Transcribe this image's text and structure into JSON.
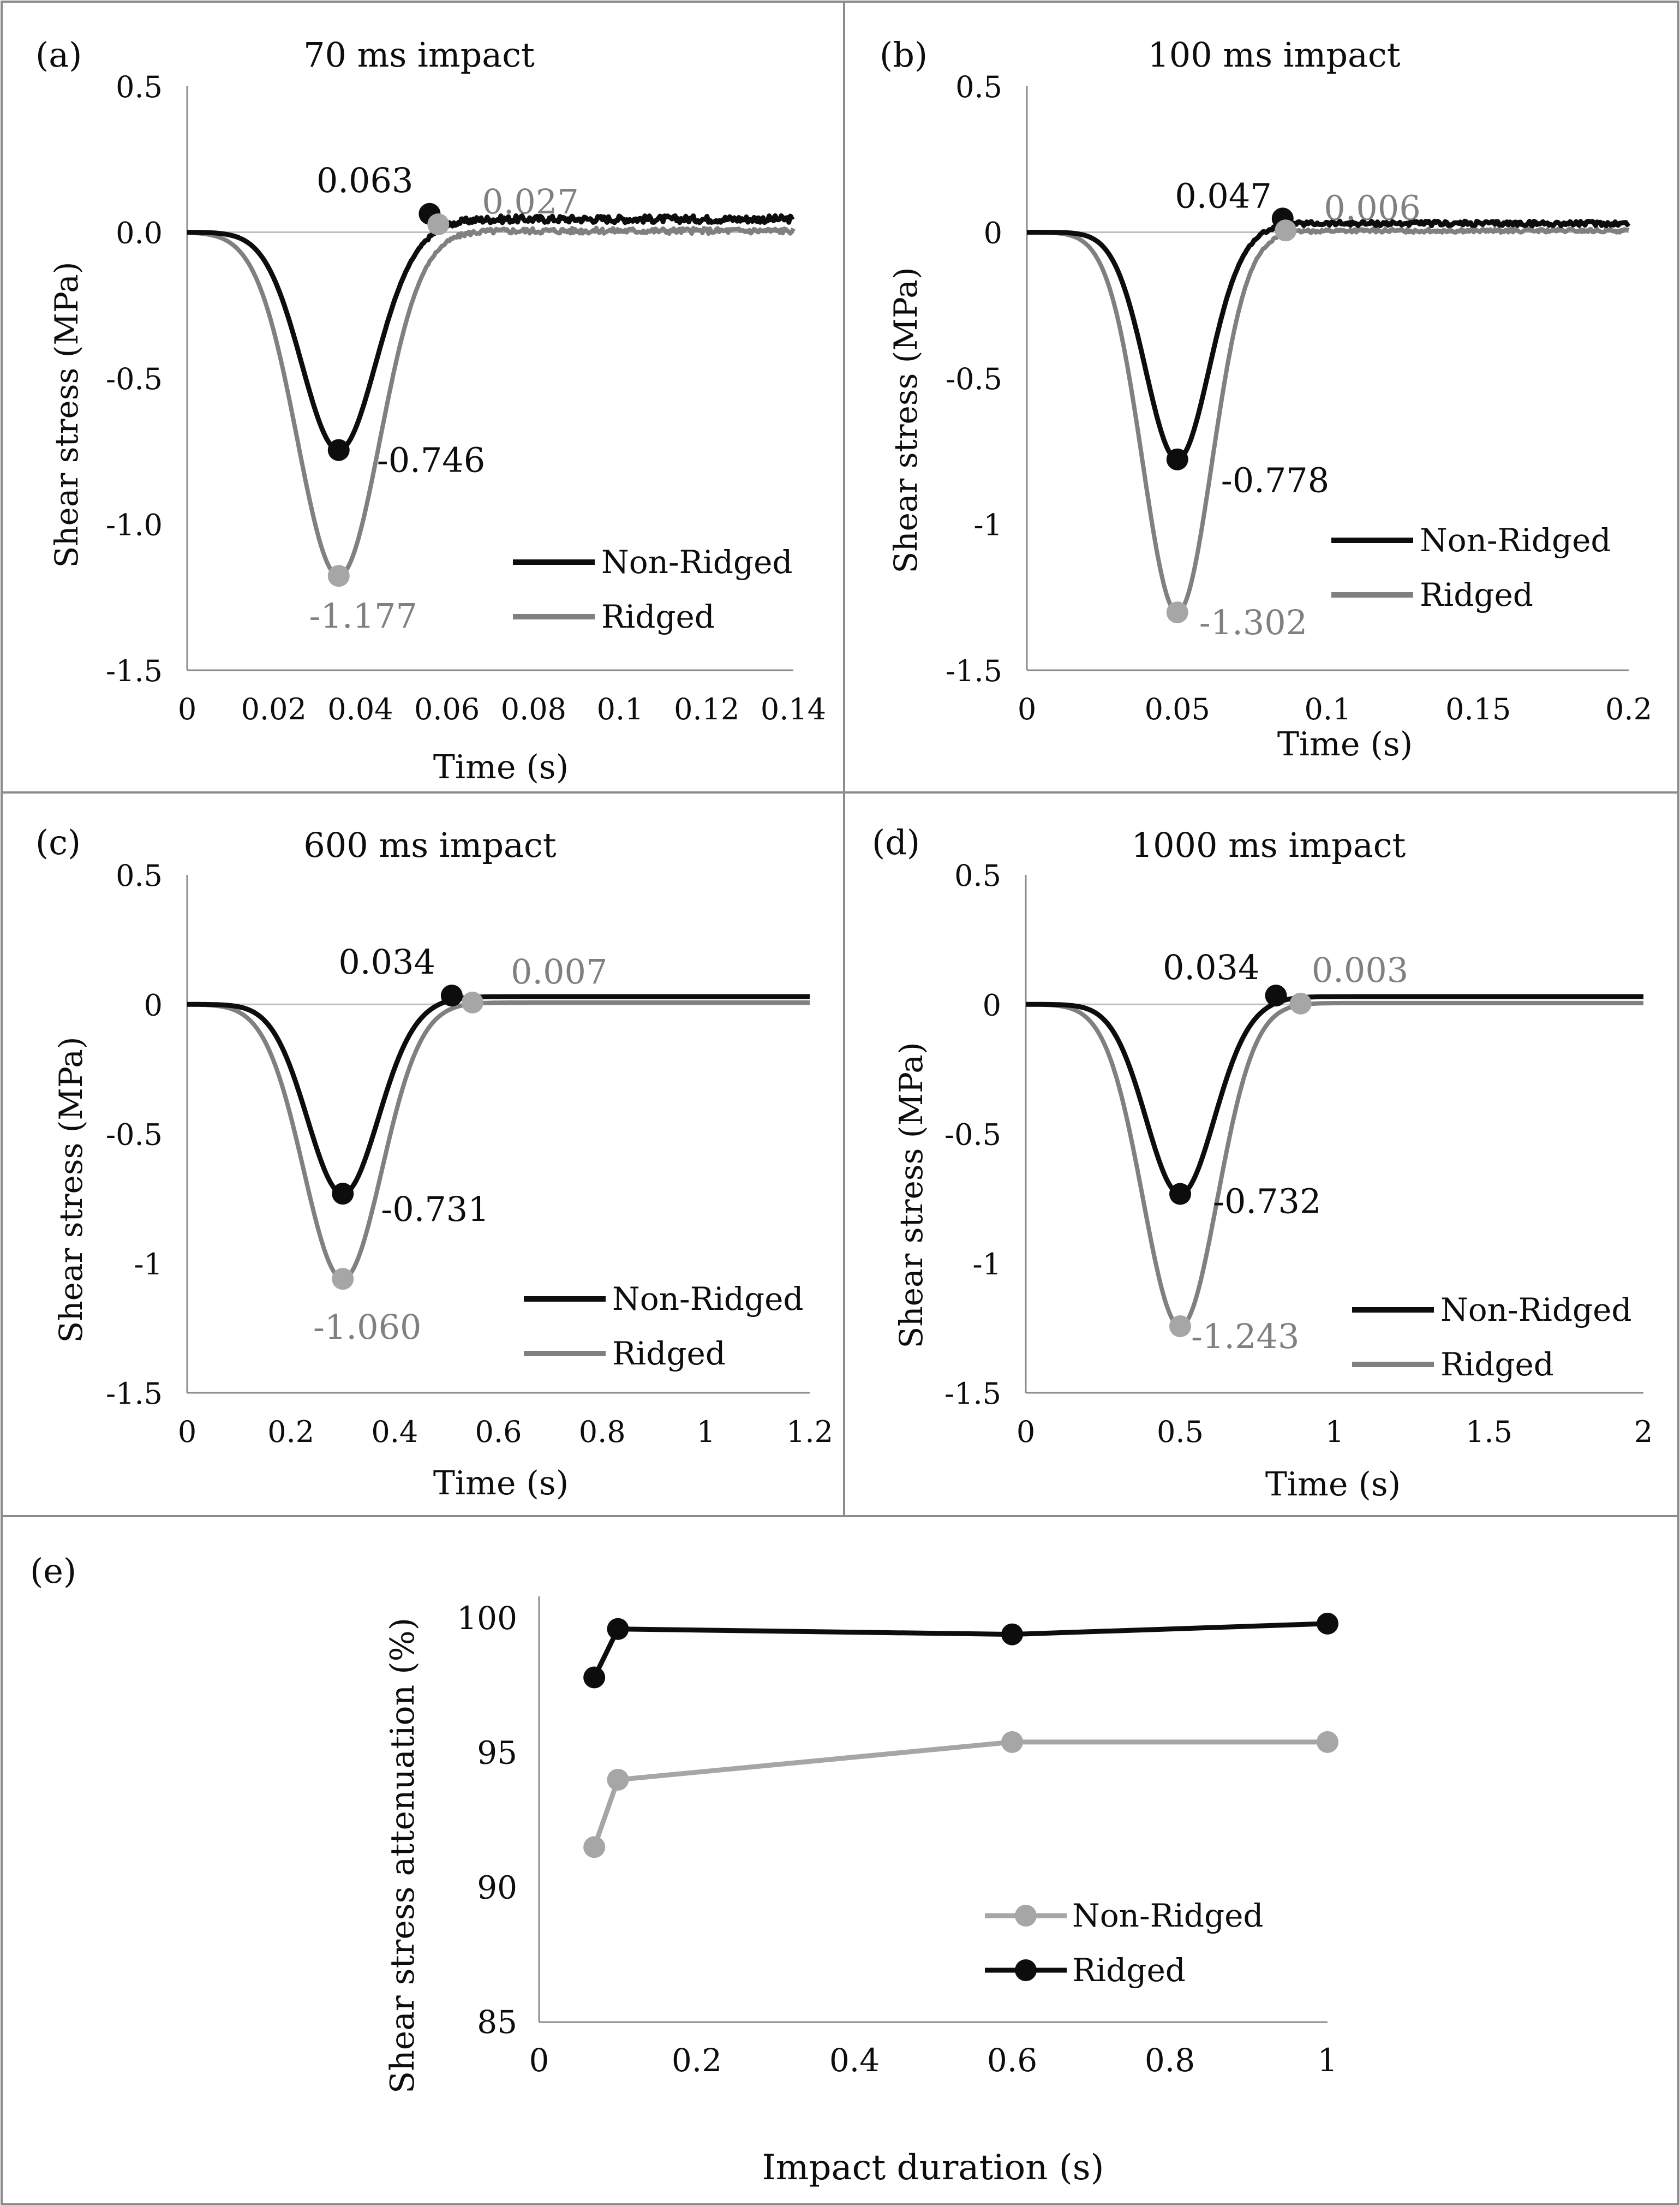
{
  "colors": {
    "black": "#0d0d0d",
    "gray": "#808080",
    "light": "#a6a6a6",
    "border": "#8c8c8c"
  },
  "chart_data": [
    {
      "type": "line",
      "panel": "(a)",
      "title": "70 ms impact",
      "xlabel": "Time (s)",
      "ylabel": "Shear stress (MPa)",
      "xlim": [
        0,
        0.14
      ],
      "ylim": [
        -1.5,
        0.5
      ],
      "xticks": [
        0,
        0.02,
        0.04,
        0.06,
        0.08,
        0.1,
        0.12,
        0.14
      ],
      "xtick_labels": [
        "0",
        "0.02",
        "0.04",
        "0.06",
        "0.08",
        "0.1",
        "0.12",
        "0.14"
      ],
      "yticks": [
        0.5,
        0,
        -0.5,
        -1,
        -1.5
      ],
      "ytick_labels": [
        "0.5",
        "0.0",
        "-0.5",
        "-1.0",
        "-1.5"
      ],
      "legend": [
        "Non-Ridged",
        "Ridged"
      ],
      "legend_position": "bottom-right",
      "series": [
        {
          "name": "Non-Ridged",
          "color": "#0d0d0d",
          "peak_x": 0.035,
          "peak": -0.746,
          "sigma": 0.0085,
          "post": 0.045,
          "noise": 0.012,
          "markers": [
            {
              "x": 0.035,
              "y": -0.746,
              "label": "-0.746"
            },
            {
              "x": 0.056,
              "y": 0.063,
              "label": "0.063"
            }
          ]
        },
        {
          "name": "Ridged",
          "color": "#808080",
          "peak_x": 0.035,
          "peak": -1.177,
          "sigma": 0.0095,
          "post": 0.005,
          "noise": 0.01,
          "markers": [
            {
              "x": 0.035,
              "y": -1.177,
              "label": "-1.177"
            },
            {
              "x": 0.058,
              "y": 0.027,
              "label": "0.027"
            }
          ]
        }
      ]
    },
    {
      "type": "line",
      "panel": "(b)",
      "title": "100 ms impact",
      "xlabel": "Time (s)",
      "ylabel": "Shear stress (MPa)",
      "xlim": [
        0,
        0.2
      ],
      "ylim": [
        -1.5,
        0.5
      ],
      "xticks": [
        0,
        0.05,
        0.1,
        0.15,
        0.2
      ],
      "xtick_labels": [
        "0",
        "0.05",
        "0.1",
        "0.15",
        "0.2"
      ],
      "yticks": [
        0.5,
        0,
        -0.5,
        -1,
        -1.5
      ],
      "ytick_labels": [
        "0.5",
        "0",
        "-0.5",
        "-1",
        "-1.5"
      ],
      "legend": [
        "Non-Ridged",
        "Ridged"
      ],
      "legend_position": "bottom-right",
      "series": [
        {
          "name": "Non-Ridged",
          "color": "#0d0d0d",
          "peak_x": 0.05,
          "peak": -0.778,
          "sigma": 0.0105,
          "post": 0.03,
          "noise": 0.008,
          "markers": [
            {
              "x": 0.085,
              "y": 0.047,
              "label": "0.047"
            },
            {
              "x": 0.05,
              "y": -0.778,
              "label": "-0.778"
            }
          ]
        },
        {
          "name": "Ridged",
          "color": "#808080",
          "peak_x": 0.05,
          "peak": -1.302,
          "sigma": 0.0115,
          "post": 0.005,
          "noise": 0.006,
          "markers": [
            {
              "x": 0.086,
              "y": 0.006,
              "label": "0.006"
            },
            {
              "x": 0.05,
              "y": -1.302,
              "label": "-1.302"
            }
          ]
        }
      ]
    },
    {
      "type": "line",
      "panel": "(c)",
      "title": "600 ms impact",
      "xlabel": "Time (s)",
      "ylabel": "Shear stress (MPa)",
      "xlim": [
        0,
        1.2
      ],
      "ylim": [
        -1.5,
        0.5
      ],
      "xticks": [
        0,
        0.2,
        0.4,
        0.6,
        0.8,
        1,
        1.2
      ],
      "xtick_labels": [
        "0",
        "0.2",
        "0.4",
        "0.6",
        "0.8",
        "1",
        "1.2"
      ],
      "yticks": [
        0.5,
        0,
        -0.5,
        -1,
        -1.5
      ],
      "ytick_labels": [
        "0.5",
        "0",
        "-0.5",
        "-1",
        "-1.5"
      ],
      "legend": [
        "Non-Ridged",
        "Ridged"
      ],
      "legend_position": "bottom-right",
      "series": [
        {
          "name": "Non-Ridged",
          "color": "#0d0d0d",
          "peak_x": 0.3,
          "peak": -0.731,
          "sigma": 0.068,
          "post": 0.03,
          "noise": 0,
          "markers": [
            {
              "x": 0.3,
              "y": -0.731,
              "label": "-0.731"
            },
            {
              "x": 0.51,
              "y": 0.034,
              "label": "0.034"
            }
          ]
        },
        {
          "name": "Ridged",
          "color": "#808080",
          "peak_x": 0.3,
          "peak": -1.06,
          "sigma": 0.075,
          "post": 0.007,
          "noise": 0,
          "markers": [
            {
              "x": 0.3,
              "y": -1.06,
              "label": "-1.060"
            },
            {
              "x": 0.55,
              "y": 0.007,
              "label": "0.007"
            }
          ]
        }
      ]
    },
    {
      "type": "line",
      "panel": "(d)",
      "title": "1000 ms impact",
      "xlabel": "Time (s)",
      "ylabel": "Shear stress (MPa)",
      "xlim": [
        0,
        2
      ],
      "ylim": [
        -1.5,
        0.5
      ],
      "xticks": [
        0,
        0.5,
        1,
        1.5,
        2
      ],
      "xtick_labels": [
        "0",
        "0.5",
        "1",
        "1.5",
        "2"
      ],
      "yticks": [
        0.5,
        0,
        -0.5,
        -1,
        -1.5
      ],
      "ytick_labels": [
        "0.5",
        "0",
        "-0.5",
        "-1",
        "-1.5"
      ],
      "legend": [
        "Non-Ridged",
        "Ridged"
      ],
      "legend_position": "bottom-right",
      "series": [
        {
          "name": "Non-Ridged",
          "color": "#0d0d0d",
          "peak_x": 0.5,
          "peak": -0.732,
          "sigma": 0.11,
          "post": 0.03,
          "noise": 0,
          "markers": [
            {
              "x": 0.5,
              "y": -0.732,
              "label": "-0.732"
            },
            {
              "x": 0.81,
              "y": 0.034,
              "label": "0.034"
            }
          ]
        },
        {
          "name": "Ridged",
          "color": "#808080",
          "peak_x": 0.5,
          "peak": -1.243,
          "sigma": 0.12,
          "post": 0.005,
          "noise": 0,
          "markers": [
            {
              "x": 0.5,
              "y": -1.243,
              "label": "-1.243"
            },
            {
              "x": 0.89,
              "y": 0.003,
              "label": "0.003"
            }
          ]
        }
      ]
    },
    {
      "type": "line",
      "panel": "(e)",
      "title": "",
      "xlabel": "Impact duration (s)",
      "ylabel": "Shear stress attenuation (%)",
      "xlim": [
        0,
        1
      ],
      "ylim": [
        85,
        100
      ],
      "xticks": [
        0,
        0.2,
        0.4,
        0.6,
        0.8,
        1
      ],
      "xtick_labels": [
        "0",
        "0.2",
        "0.4",
        "0.6",
        "0.8",
        "1"
      ],
      "yticks": [
        100,
        95,
        90,
        85
      ],
      "ytick_labels": [
        "100",
        "95",
        "90",
        "85"
      ],
      "legend": [
        "Non-Ridged",
        "Ridged"
      ],
      "legend_position": "bottom-right",
      "x": [
        0.07,
        0.1,
        0.6,
        1.0
      ],
      "series": [
        {
          "name": "Non-Ridged",
          "color": "#a6a6a6",
          "values": [
            91.5,
            94.0,
            95.4,
            95.4
          ]
        },
        {
          "name": "Ridged",
          "color": "#0d0d0d",
          "values": [
            97.8,
            99.6,
            99.4,
            99.8
          ]
        }
      ]
    }
  ]
}
